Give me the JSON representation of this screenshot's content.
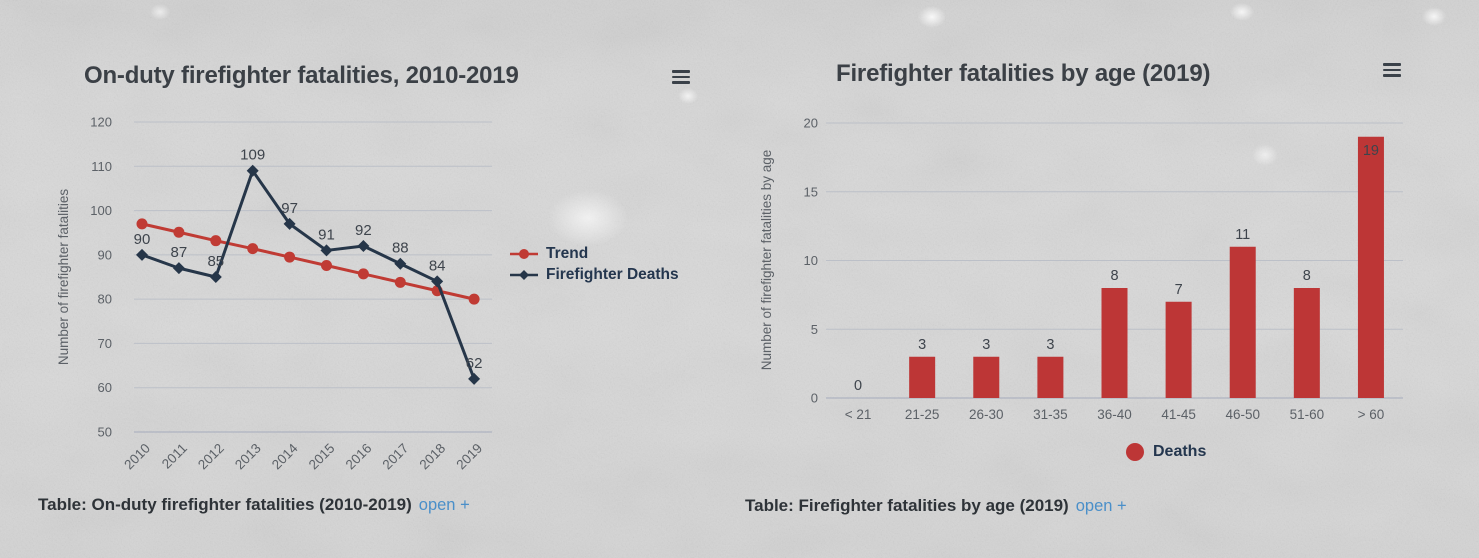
{
  "background": {
    "base_color": "#d7d7d7",
    "description": "washed-out grayscale grass photo texture"
  },
  "chart_data": [
    {
      "type": "line",
      "title": "On-duty firefighter fatalities, 2010-2019",
      "ylabel": "Number of firefighter fatalities",
      "xlabel": "",
      "categories": [
        "2010",
        "2011",
        "2012",
        "2013",
        "2014",
        "2015",
        "2016",
        "2017",
        "2018",
        "2019"
      ],
      "series": [
        {
          "name": "Trend",
          "color": "#c03b34",
          "marker": "circle",
          "values": [
            97,
            95.1,
            93.2,
            91.4,
            89.5,
            87.6,
            85.7,
            83.8,
            81.9,
            80
          ],
          "show_labels": false
        },
        {
          "name": "Firefighter Deaths",
          "color": "#263649",
          "marker": "diamond",
          "values": [
            90,
            87,
            85,
            109,
            97,
            91,
            92,
            88,
            84,
            62
          ],
          "show_labels": true
        }
      ],
      "ylim": [
        50,
        120
      ],
      "yticks": [
        120,
        110,
        100,
        90,
        80,
        70,
        60,
        50
      ],
      "grid": true,
      "legend_position": "right",
      "menu_icon": "hamburger-menu"
    },
    {
      "type": "bar",
      "title": "Firefighter fatalities by age (2019)",
      "ylabel": "Number of firefighter fatalities by age",
      "xlabel": "",
      "categories": [
        "< 21",
        "21-25",
        "26-30",
        "31-35",
        "36-40",
        "41-45",
        "46-50",
        "51-60",
        "> 60"
      ],
      "series": [
        {
          "name": "Deaths",
          "color": "#bd3636",
          "values": [
            0,
            3,
            3,
            3,
            8,
            7,
            11,
            8,
            19
          ],
          "show_labels": true
        }
      ],
      "ylim": [
        0,
        20
      ],
      "yticks": [
        0,
        5,
        10,
        15,
        20
      ],
      "grid": true,
      "legend_position": "bottom",
      "menu_icon": "hamburger-menu"
    }
  ],
  "captions": {
    "left": {
      "label": "Table: On-duty firefighter fatalities (2010-2019)",
      "link_text": "open +"
    },
    "right": {
      "label": "Table: Firefighter fatalities by age (2019)",
      "link_text": "open +"
    }
  },
  "colors": {
    "title_text": "#3b4046",
    "axis_text": "#5c6167",
    "data_label_text": "#3e444c",
    "legend_text": "#24364e",
    "gridline": "#bcc0c8",
    "baseline": "#a5abbc",
    "caption_text": "#2e3338",
    "link": "#4a8fc9",
    "trend_red": "#c03b34",
    "deaths_navy": "#263649",
    "bar_red": "#bd3636"
  }
}
